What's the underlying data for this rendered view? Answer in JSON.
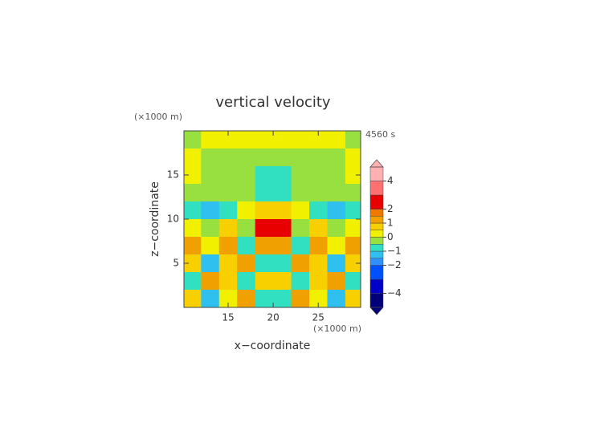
{
  "chart_data": {
    "type": "contour",
    "title": "vertical velocity",
    "annotation": "4560 s",
    "x_label": "x−coordinate",
    "y_label": "z−coordinate",
    "x_unit": "(×1000 m)",
    "y_unit": "(×1000 m)",
    "xlim": [
      10.1,
      29.7
    ],
    "ylim": [
      0,
      20
    ],
    "xticks": [
      15,
      20,
      25
    ],
    "yticks": [
      5,
      10,
      15
    ],
    "x": [
      11,
      13,
      15,
      17,
      19,
      21,
      23,
      25,
      27,
      29
    ],
    "y": [
      19,
      17,
      15,
      13,
      11,
      9,
      7,
      5,
      3,
      1
    ],
    "z": [
      [
        -0.3,
        0.2,
        0.2,
        0.2,
        0.2,
        0.2,
        0.2,
        0.2,
        0.2,
        -0.3
      ],
      [
        0.2,
        -0.3,
        -0.3,
        -0.3,
        -0.3,
        -0.3,
        -0.3,
        -0.3,
        -0.3,
        0.2
      ],
      [
        0.2,
        -0.3,
        -0.3,
        -0.3,
        -0.8,
        -0.8,
        -0.3,
        -0.3,
        -0.3,
        0.2
      ],
      [
        -0.3,
        -0.3,
        -0.3,
        -0.3,
        -0.8,
        -0.8,
        -0.3,
        -0.3,
        -0.3,
        -0.3
      ],
      [
        -0.8,
        -1.3,
        -0.8,
        0.2,
        0.7,
        0.7,
        0.2,
        -0.8,
        -1.3,
        -0.8
      ],
      [
        0.2,
        -0.3,
        0.7,
        -0.3,
        2.5,
        2.5,
        -0.3,
        0.7,
        -0.3,
        0.2
      ],
      [
        1.2,
        0.2,
        1.2,
        -0.8,
        1.2,
        1.2,
        -0.8,
        1.2,
        0.2,
        1.2
      ],
      [
        0.7,
        -1.3,
        0.7,
        1.2,
        -0.8,
        -0.8,
        1.2,
        0.7,
        -1.3,
        0.7
      ],
      [
        -0.8,
        1.2,
        0.7,
        -0.8,
        0.7,
        0.7,
        -0.8,
        0.7,
        1.2,
        -0.8
      ],
      [
        0.7,
        -1.3,
        0.2,
        1.2,
        -0.8,
        -0.8,
        1.2,
        0.2,
        -1.3,
        0.7
      ]
    ],
    "levels": [
      -5,
      -4,
      -3,
      -2,
      -1.5,
      -1,
      -0.5,
      0,
      0.5,
      1,
      1.5,
      2,
      3,
      4,
      5
    ],
    "colors": [
      "#00007a",
      "#0000c8",
      "#0050ff",
      "#3090ff",
      "#30c0f0",
      "#30e0c0",
      "#98e040",
      "#f0f000",
      "#f8d000",
      "#f0a000",
      "#f07800",
      "#e80000",
      "#ff7070",
      "#ffb0b0"
    ],
    "colorbar_lim": [
      -5,
      5
    ],
    "colorbar_ticks": [
      4,
      2,
      1,
      0,
      {
        "value": -1,
        "label": "−1"
      },
      {
        "value": -2,
        "label": "−2"
      },
      {
        "value": -4,
        "label": "−4"
      }
    ]
  }
}
